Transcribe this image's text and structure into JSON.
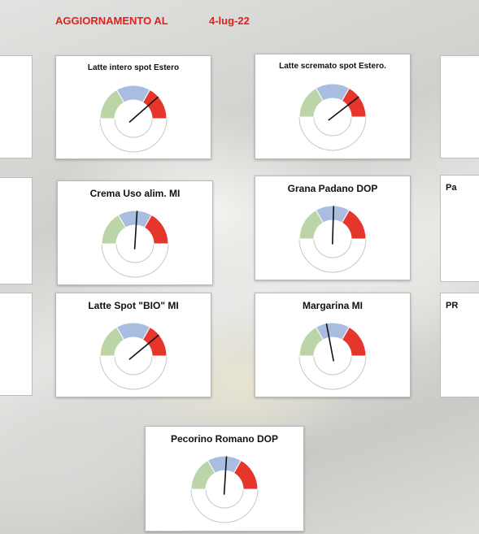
{
  "header": {
    "label": "AGGIORNAMENTO AL",
    "date": "4-lug-22"
  },
  "colors": {
    "low": "#bcd5a8",
    "mid": "#a9bde0",
    "high": "#e6352b",
    "needle": "#111111"
  },
  "chart_data": [
    {
      "type": "gauge",
      "title": "Latte intero spot Estero",
      "zones": [
        "low",
        "mid",
        "high"
      ],
      "value": 0.77
    },
    {
      "type": "gauge",
      "title": "Latte scremato spot Estero.",
      "zones": [
        "low",
        "mid",
        "high"
      ],
      "value": 0.79
    },
    {
      "type": "gauge",
      "title": "Crema Uso alim. MI",
      "zones": [
        "low",
        "mid",
        "high"
      ],
      "value": 0.52
    },
    {
      "type": "gauge",
      "title": "Grana Padano DOP",
      "zones": [
        "low",
        "mid",
        "high"
      ],
      "value": 0.51
    },
    {
      "type": "gauge",
      "title": "Latte Spot \"BIO\" MI",
      "zones": [
        "low",
        "mid",
        "high"
      ],
      "value": 0.78
    },
    {
      "type": "gauge",
      "title": "Margarina MI",
      "zones": [
        "low",
        "mid",
        "high"
      ],
      "value": 0.44
    },
    {
      "type": "gauge",
      "title": "Pecorino Romano DOP",
      "zones": [
        "low",
        "mid",
        "high"
      ],
      "value": 0.52
    }
  ],
  "partial_panels": [
    {
      "title": ""
    },
    {
      "title": ""
    },
    {
      "title": ""
    },
    {
      "title": ""
    },
    {
      "title": "Pa"
    },
    {
      "title": "PR"
    }
  ]
}
